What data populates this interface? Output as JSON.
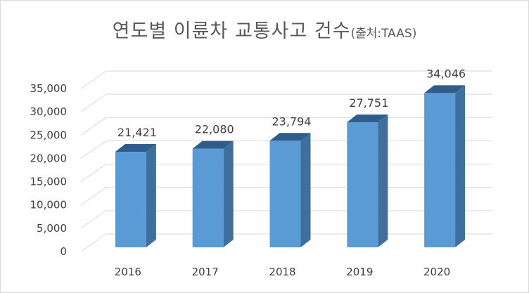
{
  "chart_data": {
    "type": "bar",
    "style": "3d-column",
    "title_main": "연도별 이륜차 교통사고 건수",
    "title_source": "(출처:TAAS)",
    "categories": [
      "2016",
      "2017",
      "2018",
      "2019",
      "2020"
    ],
    "values": [
      21421,
      22080,
      23794,
      27751,
      34046
    ],
    "data_labels": [
      "21,421",
      "22,080",
      "23,794",
      "27,751",
      "34,046"
    ],
    "y_ticks": [
      "0",
      "5,000",
      "10,000",
      "15,000",
      "20,000",
      "25,000",
      "30,000",
      "35,000"
    ],
    "ylim": [
      0,
      35000
    ],
    "xlabel": "",
    "ylabel": "",
    "grid": true,
    "legend": "none",
    "colors": {
      "bar_front": "#5b9bd5",
      "bar_side": "#3e6f9e",
      "bar_top": "#2e5d8c",
      "grid": "#d9d9d9"
    }
  }
}
